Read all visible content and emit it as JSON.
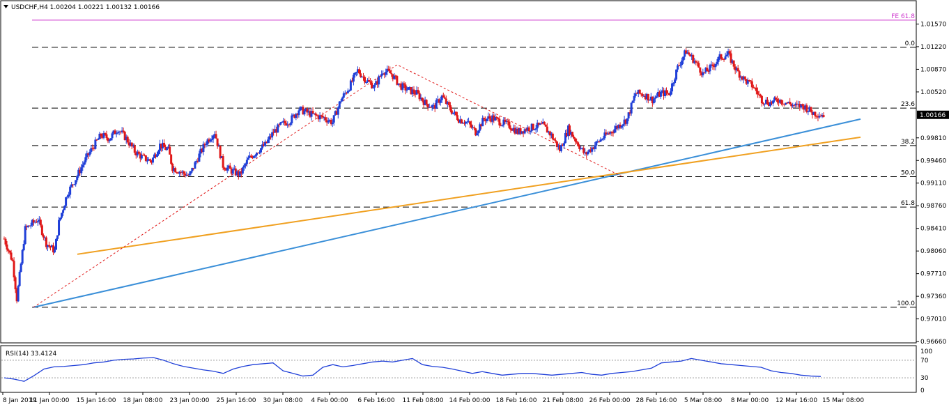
{
  "header": {
    "symbol_line": "USDCHF,H4  1.00204 1.00221 1.00132 1.00166",
    "indicator_line": "RSI(14) 33.4124"
  },
  "colors": {
    "bull": "#1f3fd8",
    "bear": "#e01818",
    "fib_line": "#000000",
    "fe_line": "#cc33cc",
    "support_blue": "#3a8fd8",
    "support_orange": "#f0a020",
    "zigzag": "#e01818",
    "rsi_line": "#1f3fd8"
  },
  "chart_data": [
    {
      "type": "candlestick",
      "title": "USDCHF,H4  1.00204 1.00221 1.00132 1.00166",
      "ylim": [
        0.9665,
        1.0192
      ],
      "y_ticks": [
        "1.01570",
        "1.01220",
        "1.00870",
        "1.00520",
        "0.99810",
        "0.99460",
        "0.99110",
        "0.98760",
        "0.98410",
        "0.98060",
        "0.97710",
        "0.97360",
        "0.97010",
        "0.96660"
      ],
      "current_price": "1.00166",
      "x_tick_labels": [
        "8 Jan 2019",
        "11 Jan 00:00",
        "15 Jan 16:00",
        "18 Jan 08:00",
        "23 Jan 00:00",
        "25 Jan 16:00",
        "30 Jan 08:00",
        "4 Feb 00:00",
        "6 Feb 16:00",
        "11 Feb 08:00",
        "14 Feb 00:00",
        "18 Feb 16:00",
        "21 Feb 08:00",
        "26 Feb 00:00",
        "28 Feb 16:00",
        "5 Mar 08:00",
        "8 Mar 00:00",
        "12 Mar 16:00",
        "15 Mar 08:00"
      ],
      "price_path": [
        [
          0,
          0.9825
        ],
        [
          2,
          0.979
        ],
        [
          3,
          0.9732
        ],
        [
          5,
          0.984
        ],
        [
          8,
          0.9855
        ],
        [
          10,
          0.9818
        ],
        [
          12,
          0.9806
        ],
        [
          13,
          0.985
        ],
        [
          15,
          0.9895
        ],
        [
          17,
          0.9918
        ],
        [
          19,
          0.9944
        ],
        [
          21,
          0.9966
        ],
        [
          23,
          0.9985
        ],
        [
          25,
          0.998
        ],
        [
          27,
          0.9995
        ],
        [
          29,
          0.998
        ],
        [
          31,
          0.996
        ],
        [
          33,
          0.995
        ],
        [
          35,
          0.9945
        ],
        [
          37,
          0.997
        ],
        [
          39,
          0.9962
        ],
        [
          40,
          0.9935
        ],
        [
          42,
          0.9928
        ],
        [
          44,
          0.9922
        ],
        [
          46,
          0.995
        ],
        [
          48,
          0.9975
        ],
        [
          50,
          0.999
        ],
        [
          52,
          0.9938
        ],
        [
          54,
          0.993
        ],
        [
          56,
          0.9924
        ],
        [
          58,
          0.9948
        ],
        [
          60,
          0.996
        ],
        [
          62,
          0.997
        ],
        [
          64,
          0.999
        ],
        [
          66,
          1.0002
        ],
        [
          68,
          1.0008
        ],
        [
          70,
          1.0025
        ],
        [
          72,
          1.002
        ],
        [
          74,
          1.0015
        ],
        [
          76,
          1.0012
        ],
        [
          78,
          1.0005
        ],
        [
          80,
          1.004
        ],
        [
          82,
          1.006
        ],
        [
          84,
          1.0085
        ],
        [
          86,
          1.007
        ],
        [
          88,
          1.006
        ],
        [
          90,
          1.0085
        ],
        [
          92,
          1.008
        ],
        [
          94,
          1.0062
        ],
        [
          96,
          1.0055
        ],
        [
          98,
          1.005
        ],
        [
          100,
          1.0035
        ],
        [
          102,
          1.0028
        ],
        [
          104,
          1.0045
        ],
        [
          106,
          1.0025
        ],
        [
          108,
          1.001
        ],
        [
          110,
          1.0005
        ],
        [
          112,
          0.999
        ],
        [
          114,
          1.001
        ],
        [
          116,
          1.0012
        ],
        [
          118,
          1.0005
        ],
        [
          120,
          1.0
        ],
        [
          122,
          0.999
        ],
        [
          124,
          0.9995
        ],
        [
          126,
          0.9998
        ],
        [
          128,
          1.0
        ],
        [
          130,
          0.9985
        ],
        [
          132,
          0.9962
        ],
        [
          134,
          0.9995
        ],
        [
          136,
          0.9975
        ],
        [
          138,
          0.9955
        ],
        [
          140,
          0.9968
        ],
        [
          142,
          0.998
        ],
        [
          144,
          0.999
        ],
        [
          146,
          1.0
        ],
        [
          148,
          1.001
        ],
        [
          150,
          1.005
        ],
        [
          152,
          1.0048
        ],
        [
          154,
          1.004
        ],
        [
          156,
          1.005
        ],
        [
          158,
          1.005
        ],
        [
          160,
          1.009
        ],
        [
          162,
          1.0115
        ],
        [
          164,
          1.01
        ],
        [
          166,
          1.008
        ],
        [
          168,
          1.009
        ],
        [
          170,
          1.0105
        ],
        [
          172,
          1.011
        ],
        [
          174,
          1.0085
        ],
        [
          176,
          1.007
        ],
        [
          178,
          1.006
        ],
        [
          180,
          1.004
        ],
        [
          182,
          1.0035
        ],
        [
          184,
          1.004
        ],
        [
          186,
          1.0035
        ],
        [
          188,
          1.003
        ],
        [
          190,
          1.003
        ],
        [
          192,
          1.002
        ],
        [
          194,
          1.0017
        ]
      ],
      "fib_levels": [
        {
          "label": "0.0",
          "value": 1.0121
        },
        {
          "label": "23.6",
          "value": 1.0027
        },
        {
          "label": "38.2",
          "value": 0.9969
        },
        {
          "label": "50.0",
          "value": 0.9921
        },
        {
          "label": "61.8",
          "value": 0.9874
        },
        {
          "label": "100.0",
          "value": 0.9719
        }
      ],
      "fe_level": {
        "label": "FE 61.8",
        "value": 1.0163
      },
      "trend_lines": [
        {
          "name": "blue",
          "from": [
            "8 Jan 2019",
            0.9719
          ],
          "to": [
            "15 Mar 08:00",
            1.001
          ]
        },
        {
          "name": "orange",
          "from": [
            "11 Jan 00:00",
            0.9801
          ],
          "to": [
            "15 Mar 08:00",
            0.9982
          ]
        }
      ]
    },
    {
      "type": "line",
      "title": "RSI(14) 33.4124",
      "ylim": [
        0,
        100
      ],
      "y_ticks": [
        "100",
        "70",
        "30",
        "0"
      ],
      "levels": [
        70,
        30
      ],
      "rsi": [
        30,
        27,
        22,
        35,
        50,
        55,
        56,
        58,
        60,
        64,
        66,
        70,
        72,
        73,
        75,
        76,
        70,
        62,
        56,
        52,
        48,
        45,
        40,
        50,
        56,
        60,
        62,
        64,
        46,
        40,
        34,
        36,
        54,
        60,
        55,
        58,
        62,
        66,
        68,
        66,
        70,
        74,
        60,
        56,
        54,
        50,
        45,
        40,
        44,
        40,
        36,
        38,
        40,
        40,
        38,
        36,
        38,
        40,
        42,
        38,
        36,
        40,
        42,
        44,
        48,
        52,
        64,
        66,
        68,
        74,
        70,
        66,
        62,
        60,
        58,
        56,
        54,
        46,
        42,
        40,
        36,
        34,
        33
      ]
    }
  ]
}
